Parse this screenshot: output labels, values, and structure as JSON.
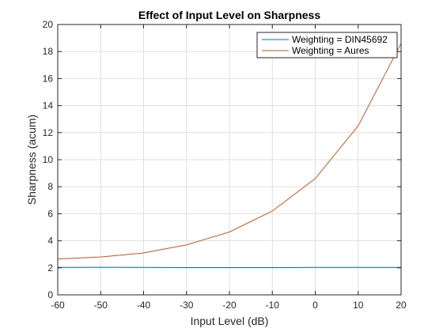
{
  "chart_data": {
    "type": "line",
    "title": "Effect of Input Level on Sharpness",
    "xlabel": "Input Level (dB)",
    "ylabel": "Sharpness (acum)",
    "xlim": [
      -60,
      20
    ],
    "ylim": [
      0,
      20
    ],
    "xticks": [
      -60,
      -50,
      -40,
      -30,
      -20,
      -10,
      0,
      10,
      20
    ],
    "yticks": [
      0,
      2,
      4,
      6,
      8,
      10,
      12,
      14,
      16,
      18,
      20
    ],
    "grid": true,
    "legend_position": "top-right",
    "x": [
      -60,
      -50,
      -40,
      -30,
      -20,
      -10,
      0,
      10,
      20
    ],
    "series": [
      {
        "name": "Weighting = DIN45692",
        "color": "#0072BD",
        "values": [
          2.03,
          2.04,
          2.03,
          2.02,
          2.02,
          2.02,
          2.03,
          2.03,
          2.03
        ]
      },
      {
        "name": "Weighting = Aures",
        "color": "#D95319",
        "values": [
          2.65,
          2.8,
          3.1,
          3.7,
          4.65,
          6.2,
          8.6,
          12.5,
          18.6
        ]
      }
    ]
  }
}
